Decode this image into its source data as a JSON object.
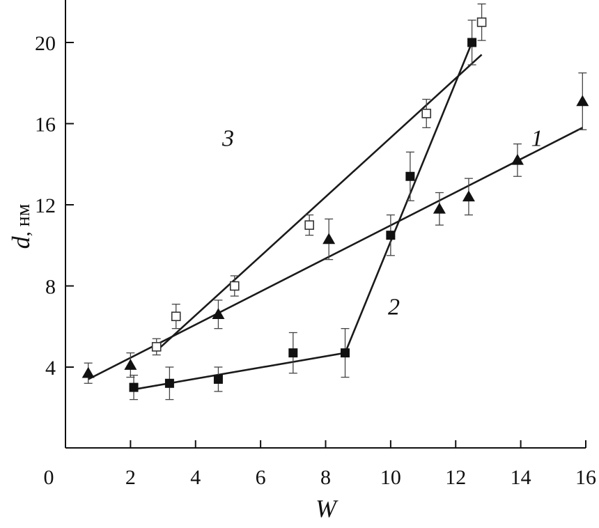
{
  "chart_data": {
    "type": "scatter",
    "xlabel": "W",
    "ylabel": "d",
    "ylabel_unit": ", нм",
    "xlim": [
      0,
      16
    ],
    "ylim": [
      0,
      22
    ],
    "x_ticks": [
      0,
      2,
      4,
      6,
      8,
      10,
      12,
      14,
      16
    ],
    "y_ticks": [
      4,
      8,
      12,
      16,
      20
    ],
    "grid": false,
    "series": [
      {
        "name": "1",
        "marker": "filled-triangle",
        "points": [
          {
            "x": 0.7,
            "y": 3.7,
            "err": 0.5
          },
          {
            "x": 2.0,
            "y": 4.1,
            "err": 0.6
          },
          {
            "x": 4.7,
            "y": 6.6,
            "err": 0.7
          },
          {
            "x": 8.1,
            "y": 10.3,
            "err": 1.0
          },
          {
            "x": 11.5,
            "y": 11.8,
            "err": 0.8
          },
          {
            "x": 12.4,
            "y": 12.4,
            "err": 0.9
          },
          {
            "x": 13.9,
            "y": 14.2,
            "err": 0.8
          },
          {
            "x": 15.9,
            "y": 17.1,
            "err": 1.4
          }
        ],
        "fit_lines": [
          {
            "x1": 0.7,
            "y1": 3.4,
            "x2": 15.9,
            "y2": 15.8
          }
        ]
      },
      {
        "name": "2",
        "marker": "filled-square",
        "points": [
          {
            "x": 2.1,
            "y": 3.0,
            "err": 0.6
          },
          {
            "x": 3.2,
            "y": 3.2,
            "err": 0.8
          },
          {
            "x": 4.7,
            "y": 3.4,
            "err": 0.6
          },
          {
            "x": 7.0,
            "y": 4.7,
            "err": 1.0
          },
          {
            "x": 8.6,
            "y": 4.7,
            "err": 1.2
          },
          {
            "x": 10.0,
            "y": 10.5,
            "err": 1.0
          },
          {
            "x": 10.6,
            "y": 13.4,
            "err": 1.2
          },
          {
            "x": 12.5,
            "y": 20.0,
            "err": 1.1
          }
        ],
        "fit_lines": [
          {
            "x1": 2.1,
            "y1": 2.9,
            "x2": 8.6,
            "y2": 4.7
          },
          {
            "x1": 8.6,
            "y1": 4.7,
            "x2": 12.5,
            "y2": 20.0
          }
        ]
      },
      {
        "name": "3",
        "marker": "open-square",
        "points": [
          {
            "x": 2.8,
            "y": 5.0,
            "err": 0.4
          },
          {
            "x": 3.4,
            "y": 6.5,
            "err": 0.6
          },
          {
            "x": 5.2,
            "y": 8.0,
            "err": 0.5
          },
          {
            "x": 7.5,
            "y": 11.0,
            "err": 0.5
          },
          {
            "x": 11.1,
            "y": 16.5,
            "err": 0.7
          },
          {
            "x": 12.8,
            "y": 21.0,
            "err": 0.9
          }
        ],
        "fit_lines": [
          {
            "x1": 2.8,
            "y1": 4.8,
            "x2": 12.8,
            "y2": 19.4
          }
        ]
      }
    ],
    "annotations": [
      {
        "text": "1",
        "x": 14.5,
        "y": 14.9
      },
      {
        "text": "2",
        "x": 10.1,
        "y": 6.6
      },
      {
        "text": "3",
        "x": 5.0,
        "y": 14.9
      }
    ]
  }
}
